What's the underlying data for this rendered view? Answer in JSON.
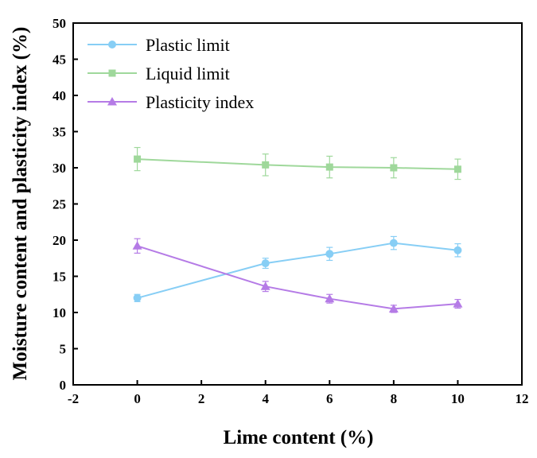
{
  "chart_data": {
    "type": "line",
    "title": "",
    "xlabel": "Lime content (%)",
    "ylabel": "Moisture content and plasticity index (%)",
    "xlim": [
      -2,
      12
    ],
    "ylim": [
      0,
      50
    ],
    "xticks": [
      -2,
      0,
      2,
      4,
      6,
      8,
      10,
      12
    ],
    "yticks": [
      0,
      5,
      10,
      15,
      20,
      25,
      30,
      35,
      40,
      45,
      50
    ],
    "grid": false,
    "legend_position": "top-left",
    "series": [
      {
        "name": "Plastic limit",
        "color": "#87cef5",
        "marker": "circle",
        "x": [
          0,
          4,
          6,
          8,
          10
        ],
        "y": [
          12.0,
          16.8,
          18.1,
          19.6,
          18.6
        ],
        "err": [
          0.5,
          0.7,
          0.9,
          0.9,
          0.9
        ]
      },
      {
        "name": "Liquid limit",
        "color": "#9fd89b",
        "marker": "square",
        "x": [
          0,
          4,
          6,
          8,
          10
        ],
        "y": [
          31.2,
          30.4,
          30.1,
          30.0,
          29.8
        ],
        "err": [
          1.6,
          1.5,
          1.5,
          1.4,
          1.4
        ]
      },
      {
        "name": "Plasticity index",
        "color": "#b57be6",
        "marker": "triangle",
        "x": [
          0,
          4,
          6,
          8,
          10
        ],
        "y": [
          19.2,
          13.6,
          11.9,
          10.5,
          11.2
        ],
        "err": [
          1.0,
          0.7,
          0.6,
          0.5,
          0.6
        ]
      }
    ]
  }
}
